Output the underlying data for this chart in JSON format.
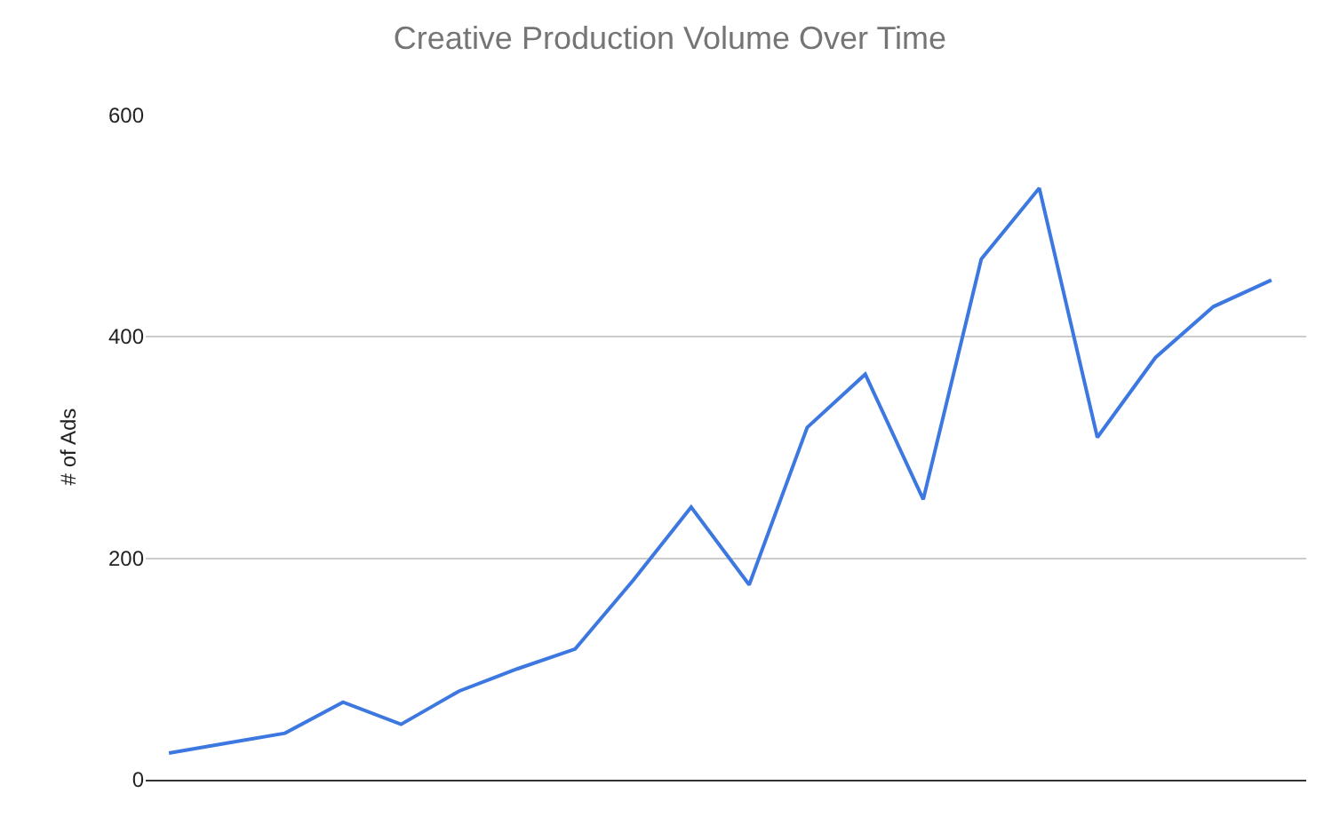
{
  "chart_data": {
    "type": "line",
    "title": "Creative Production Volume Over Time",
    "ylabel": "# of Ads",
    "categories": [
      null,
      null,
      null,
      null,
      null,
      null,
      null,
      null,
      null,
      null,
      null,
      null,
      null,
      null,
      null,
      null,
      null,
      null,
      null,
      null
    ],
    "series": [
      {
        "color": "#3c78e0",
        "values": [
          24,
          33,
          42,
          70,
          50,
          80,
          100,
          118,
          180,
          246,
          176,
          318,
          366,
          253,
          470,
          534,
          309,
          381,
          427,
          451
        ]
      }
    ],
    "ylim": [
      0,
      600
    ],
    "yticks": [
      0,
      200,
      400,
      600
    ],
    "grid": "y"
  }
}
